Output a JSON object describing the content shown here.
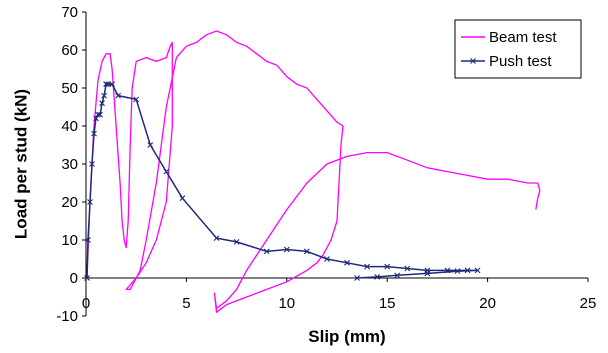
{
  "chart_data": {
    "type": "line",
    "xlabel": "Slip (mm)",
    "ylabel": "Load per stud (kN)",
    "xlim": [
      0,
      25
    ],
    "ylim": [
      -10,
      70
    ],
    "xticks": [
      0,
      5,
      10,
      15,
      20,
      25
    ],
    "yticks": [
      -10,
      0,
      10,
      20,
      30,
      40,
      50,
      60,
      70
    ],
    "grid": false,
    "legend_position": "top-right",
    "series": [
      {
        "name": "Beam test",
        "color": "#ff00ff",
        "marker": "none",
        "points": [
          [
            0.05,
            0
          ],
          [
            0.2,
            20
          ],
          [
            0.4,
            40
          ],
          [
            0.6,
            52
          ],
          [
            0.8,
            57
          ],
          [
            1.0,
            59
          ],
          [
            1.2,
            59
          ],
          [
            1.3,
            55
          ],
          [
            1.5,
            40
          ],
          [
            1.7,
            25
          ],
          [
            1.8,
            15
          ],
          [
            1.9,
            10
          ],
          [
            2.0,
            8
          ],
          [
            2.1,
            15
          ],
          [
            2.2,
            35
          ],
          [
            2.3,
            50
          ],
          [
            2.5,
            57
          ],
          [
            3.0,
            58
          ],
          [
            3.5,
            57
          ],
          [
            4.0,
            58
          ],
          [
            4.2,
            61
          ],
          [
            4.3,
            62
          ],
          [
            4.3,
            40
          ],
          [
            4.0,
            20
          ],
          [
            3.5,
            10
          ],
          [
            3.0,
            4
          ],
          [
            2.5,
            0
          ],
          [
            2.0,
            -3
          ],
          [
            2.2,
            -3
          ],
          [
            2.7,
            2
          ],
          [
            3.0,
            10
          ],
          [
            3.5,
            25
          ],
          [
            4.0,
            45
          ],
          [
            4.5,
            58
          ],
          [
            5.0,
            61
          ],
          [
            5.5,
            62
          ],
          [
            6.0,
            64
          ],
          [
            6.5,
            65
          ],
          [
            7.0,
            64
          ],
          [
            7.5,
            62
          ],
          [
            8.0,
            61
          ],
          [
            8.5,
            59
          ],
          [
            9.0,
            57
          ],
          [
            9.5,
            56
          ],
          [
            10.0,
            53
          ],
          [
            10.5,
            51
          ],
          [
            11.0,
            50
          ],
          [
            11.5,
            47
          ],
          [
            12.0,
            44
          ],
          [
            12.5,
            41
          ],
          [
            12.8,
            40
          ],
          [
            12.7,
            35
          ],
          [
            12.6,
            25
          ],
          [
            12.5,
            15
          ],
          [
            12.2,
            10
          ],
          [
            11.8,
            6
          ],
          [
            11.5,
            4
          ],
          [
            11.0,
            2
          ],
          [
            10.0,
            -1
          ],
          [
            9.0,
            -3
          ],
          [
            8.0,
            -5
          ],
          [
            7.0,
            -7
          ],
          [
            6.5,
            -9
          ],
          [
            6.4,
            -4
          ],
          [
            6.5,
            -8
          ],
          [
            7.0,
            -6
          ],
          [
            7.5,
            -3
          ],
          [
            8.0,
            2
          ],
          [
            9.0,
            10
          ],
          [
            10.0,
            18
          ],
          [
            11.0,
            25
          ],
          [
            12.0,
            30
          ],
          [
            13.0,
            32
          ],
          [
            14.0,
            33
          ],
          [
            15.0,
            33
          ],
          [
            16.0,
            31
          ],
          [
            17.0,
            29
          ],
          [
            18.0,
            28
          ],
          [
            19.0,
            27
          ],
          [
            20.0,
            26
          ],
          [
            21.0,
            26
          ],
          [
            22.0,
            25
          ],
          [
            22.5,
            25
          ],
          [
            22.6,
            23
          ],
          [
            22.5,
            21
          ],
          [
            22.4,
            18
          ]
        ]
      },
      {
        "name": "Push test",
        "color": "#1f2a7a",
        "marker": "x",
        "points": [
          [
            0.05,
            0
          ],
          [
            0.1,
            10
          ],
          [
            0.2,
            20
          ],
          [
            0.3,
            30
          ],
          [
            0.4,
            38
          ],
          [
            0.5,
            42
          ],
          [
            0.6,
            43
          ],
          [
            0.7,
            43
          ],
          [
            0.8,
            46
          ],
          [
            0.9,
            48
          ],
          [
            1.0,
            51
          ],
          [
            1.1,
            51
          ],
          [
            1.3,
            51
          ],
          [
            1.6,
            48
          ],
          [
            2.5,
            47
          ],
          [
            3.2,
            35
          ],
          [
            4.0,
            28
          ],
          [
            4.8,
            21
          ],
          [
            6.5,
            10.5
          ],
          [
            7.5,
            9.5
          ],
          [
            9.0,
            7
          ],
          [
            10.0,
            7.5
          ],
          [
            11.0,
            7
          ],
          [
            12.0,
            5
          ],
          [
            13.0,
            4
          ],
          [
            14.0,
            3
          ],
          [
            15.0,
            3
          ],
          [
            16.0,
            2.5
          ],
          [
            17.0,
            2
          ],
          [
            18.0,
            2
          ],
          [
            19.0,
            2
          ],
          [
            19.5,
            2
          ],
          [
            18.5,
            1.8
          ],
          [
            17.0,
            1.2
          ],
          [
            15.5,
            0.7
          ],
          [
            14.5,
            0.3
          ],
          [
            13.5,
            0
          ]
        ]
      }
    ]
  }
}
